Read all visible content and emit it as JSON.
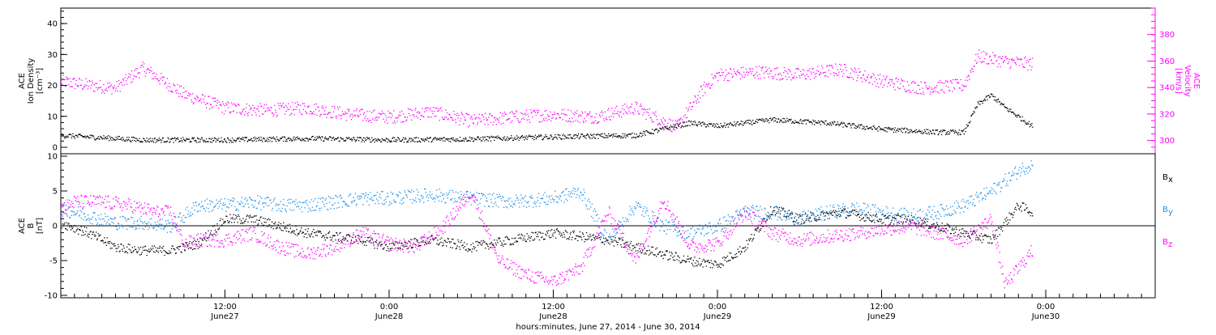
{
  "chart_data": [
    {
      "type": "scatter",
      "panel": "top",
      "ylabel_left": [
        "ACE",
        "Ion Density",
        "[cm⁻³]"
      ],
      "ylabel_right": [
        "ACE",
        "Velocity",
        "[km/s]"
      ],
      "ylim_left": [
        0,
        45
      ],
      "ylim_right": [
        290,
        400
      ],
      "yticks_left": [
        "0",
        "10",
        "20",
        "30",
        "40"
      ],
      "yticks_right": [
        "300",
        "320",
        "340",
        "360",
        "380"
      ],
      "grid": false,
      "series": [
        {
          "color": "#000000",
          "axis": "left",
          "x_hours": [
            0,
            6,
            12,
            18,
            24,
            30,
            36,
            42,
            46,
            48,
            52,
            56,
            60,
            64,
            66,
            67,
            68,
            69,
            70,
            71
          ],
          "y": [
            4,
            2.5,
            2.5,
            3,
            2.5,
            2.8,
            3.5,
            4,
            8,
            7,
            9,
            8,
            6,
            5,
            5,
            14,
            17,
            13,
            10,
            7
          ]
        },
        {
          "color": "#ff00ff",
          "axis": "right",
          "x_hours": [
            0,
            2,
            4,
            6,
            9,
            12,
            15,
            18,
            21,
            24,
            27,
            30,
            33,
            36,
            39,
            42,
            45,
            47,
            48,
            51,
            54,
            57,
            60,
            63,
            66,
            67,
            69,
            71
          ],
          "y": [
            345,
            342,
            340,
            355,
            335,
            325,
            323,
            325,
            320,
            318,
            322,
            315,
            318,
            320,
            318,
            325,
            310,
            340,
            350,
            352,
            350,
            354,
            345,
            340,
            342,
            364,
            360,
            358
          ]
        }
      ]
    },
    {
      "type": "scatter",
      "panel": "bottom",
      "ylabel": [
        "ACE",
        "B",
        "[nT]"
      ],
      "ylim": [
        -10,
        10
      ],
      "yticks": [
        "-10",
        "-5",
        "0",
        "5",
        "10"
      ],
      "xlabel": "hours:minutes, June 27, 2014 - June 30, 2014",
      "xticks": [
        {
          "time": "12:00",
          "date": "June27",
          "x_hours": 12
        },
        {
          "time": "0:00",
          "date": "June28",
          "x_hours": 24
        },
        {
          "time": "12:00",
          "date": "June28",
          "x_hours": 36
        },
        {
          "time": "0:00",
          "date": "June29",
          "x_hours": 48
        },
        {
          "time": "12:00",
          "date": "June29",
          "x_hours": 60
        },
        {
          "time": "0:00",
          "date": "June30",
          "x_hours": 72
        }
      ],
      "xlim_hours": [
        0,
        80
      ],
      "grid": false,
      "legend": [
        {
          "label": "B",
          "sub": "x",
          "color": "#000000"
        },
        {
          "label": "B",
          "sub": "y",
          "color": "#1e90e8"
        },
        {
          "label": "B",
          "sub": "z",
          "color": "#ff00ff"
        }
      ],
      "series": [
        {
          "name": "Bx",
          "color": "#000000",
          "x_hours": [
            0,
            2,
            4,
            6,
            8,
            10,
            12,
            14,
            18,
            22,
            24,
            27,
            30,
            33,
            36,
            40,
            44,
            46,
            48,
            50,
            52,
            54,
            57,
            60,
            62,
            64,
            66,
            68,
            70,
            71
          ],
          "y": [
            0.5,
            -1,
            -3,
            -3.5,
            -3.5,
            -2.5,
            1,
            1,
            -1,
            -2,
            -3,
            -2,
            -3,
            -2,
            -1,
            -2,
            -4,
            -5,
            -5.5,
            -3,
            2.5,
            1,
            2,
            1,
            1,
            0,
            -1,
            -2,
            3,
            2
          ]
        },
        {
          "name": "By",
          "color": "#1e90e8",
          "x_hours": [
            0,
            2,
            4,
            6,
            8,
            10,
            12,
            14,
            16,
            18,
            20,
            22,
            24,
            27,
            30,
            33,
            36,
            38,
            40,
            42,
            44,
            46,
            48,
            50,
            52,
            54,
            56,
            58,
            60,
            62,
            64,
            66,
            68,
            70,
            71
          ],
          "y": [
            2.5,
            1.5,
            0.5,
            0.5,
            0,
            3,
            3,
            3.5,
            3,
            3,
            3.5,
            4,
            4,
            4.5,
            4,
            3.5,
            4,
            5,
            -2,
            3,
            0,
            -1,
            0,
            2,
            2,
            1,
            2,
            2.5,
            2,
            1.5,
            2,
            3,
            5,
            8,
            9
          ]
        },
        {
          "name": "Bz",
          "color": "#ff00ff",
          "x_hours": [
            0,
            1,
            3,
            5,
            7,
            8,
            9,
            10,
            12,
            14,
            16,
            18,
            20,
            22,
            24,
            26,
            28,
            30,
            32,
            34,
            36,
            38,
            40,
            42,
            44,
            46,
            48,
            50,
            52,
            54,
            56,
            58,
            60,
            62,
            64,
            66,
            68,
            69,
            70,
            71
          ],
          "y": [
            2.5,
            3.5,
            3.5,
            3,
            2,
            2,
            -2.5,
            -2,
            -2,
            -1,
            -3,
            -4,
            -3,
            -1,
            -2.5,
            -3,
            0,
            5,
            -5,
            -7,
            -8,
            -6,
            2,
            -5,
            4,
            -3,
            -2.5,
            2,
            -1,
            -2,
            -1.5,
            -1,
            -0.5,
            0,
            -1,
            -2,
            1,
            -8.5,
            -6,
            -3.5
          ]
        }
      ]
    }
  ]
}
